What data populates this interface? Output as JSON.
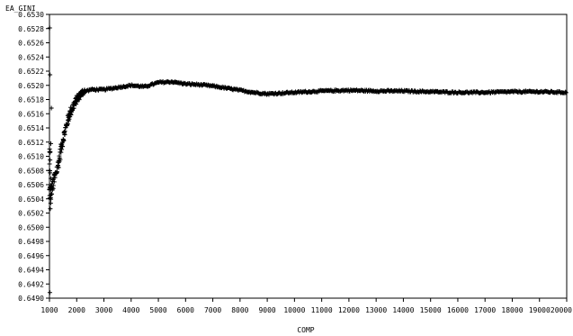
{
  "chart_data": {
    "type": "scatter",
    "marker": "plus",
    "marker_color": "#000000",
    "ylabel": "EA_GINI",
    "xlabel": "COMP",
    "xlim": [
      1000,
      20000
    ],
    "ylim": [
      0.649,
      0.653
    ],
    "x_ticks": [
      1000,
      2000,
      3000,
      4000,
      5000,
      6000,
      7000,
      8000,
      9000,
      10000,
      11000,
      12000,
      13000,
      14000,
      15000,
      16000,
      17000,
      18000,
      19000,
      20000
    ],
    "y_ticks": [
      0.649,
      0.6492,
      0.6494,
      0.6496,
      0.6498,
      0.65,
      0.6502,
      0.6504,
      0.6506,
      0.6508,
      0.651,
      0.6512,
      0.6514,
      0.6516,
      0.6518,
      0.652,
      0.6522,
      0.6524,
      0.6526,
      0.6528,
      0.653
    ],
    "y_tick_decimals": 4,
    "grid": false,
    "outliers": [
      {
        "x": 1010,
        "y": 0.65281
      },
      {
        "x": 1015,
        "y": 0.64908
      },
      {
        "x": 1020,
        "y": 0.65215
      },
      {
        "x": 1030,
        "y": 0.65026
      },
      {
        "x": 1050,
        "y": 0.65118
      },
      {
        "x": 1070,
        "y": 0.65168
      }
    ],
    "trend": [
      {
        "x": 1000,
        "y": 0.6505
      },
      {
        "x": 1100,
        "y": 0.65055
      },
      {
        "x": 1200,
        "y": 0.6507
      },
      {
        "x": 1300,
        "y": 0.65085
      },
      {
        "x": 1400,
        "y": 0.65105
      },
      {
        "x": 1500,
        "y": 0.65125
      },
      {
        "x": 1600,
        "y": 0.6514
      },
      {
        "x": 1700,
        "y": 0.65155
      },
      {
        "x": 1800,
        "y": 0.65165
      },
      {
        "x": 2000,
        "y": 0.6518
      },
      {
        "x": 2200,
        "y": 0.6519
      },
      {
        "x": 2500,
        "y": 0.65194
      },
      {
        "x": 3000,
        "y": 0.65194
      },
      {
        "x": 3500,
        "y": 0.65197
      },
      {
        "x": 4000,
        "y": 0.652
      },
      {
        "x": 4500,
        "y": 0.65198
      },
      {
        "x": 5000,
        "y": 0.65204
      },
      {
        "x": 5500,
        "y": 0.65205
      },
      {
        "x": 6000,
        "y": 0.65202
      },
      {
        "x": 6500,
        "y": 0.65201
      },
      {
        "x": 7000,
        "y": 0.65199
      },
      {
        "x": 7500,
        "y": 0.65196
      },
      {
        "x": 8000,
        "y": 0.65193
      },
      {
        "x": 8500,
        "y": 0.6519
      },
      {
        "x": 9000,
        "y": 0.65188
      },
      {
        "x": 9500,
        "y": 0.65189
      },
      {
        "x": 10000,
        "y": 0.6519
      },
      {
        "x": 11000,
        "y": 0.65192
      },
      {
        "x": 12000,
        "y": 0.65193
      },
      {
        "x": 13000,
        "y": 0.65192
      },
      {
        "x": 14000,
        "y": 0.65192
      },
      {
        "x": 15000,
        "y": 0.65191
      },
      {
        "x": 16000,
        "y": 0.6519
      },
      {
        "x": 17000,
        "y": 0.6519
      },
      {
        "x": 18000,
        "y": 0.65191
      },
      {
        "x": 19000,
        "y": 0.65191
      },
      {
        "x": 20000,
        "y": 0.6519
      }
    ]
  }
}
